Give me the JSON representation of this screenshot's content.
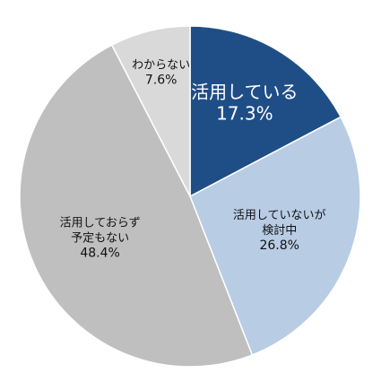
{
  "chart_data": {
    "type": "pie",
    "start_angle_deg": 0,
    "direction": "clockwise",
    "slices": [
      {
        "label": [
          "活用している"
        ],
        "value": 17.3,
        "value_label": "17.3%",
        "color": "#1f4e86",
        "text_color": "#ffffff"
      },
      {
        "label": [
          "活用していないが",
          "検討中"
        ],
        "value": 26.8,
        "value_label": "26.8%",
        "color": "#b8cce4",
        "text_color": "#111111"
      },
      {
        "label": [
          "活用しておらず",
          "予定もない"
        ],
        "value": 48.4,
        "value_label": "48.4%",
        "color": "#bfbfbf",
        "text_color": "#111111"
      },
      {
        "label": [
          "わからない"
        ],
        "value": 7.6,
        "value_label": "7.6%",
        "color": "#d9d9d9",
        "text_color": "#111111"
      }
    ]
  }
}
